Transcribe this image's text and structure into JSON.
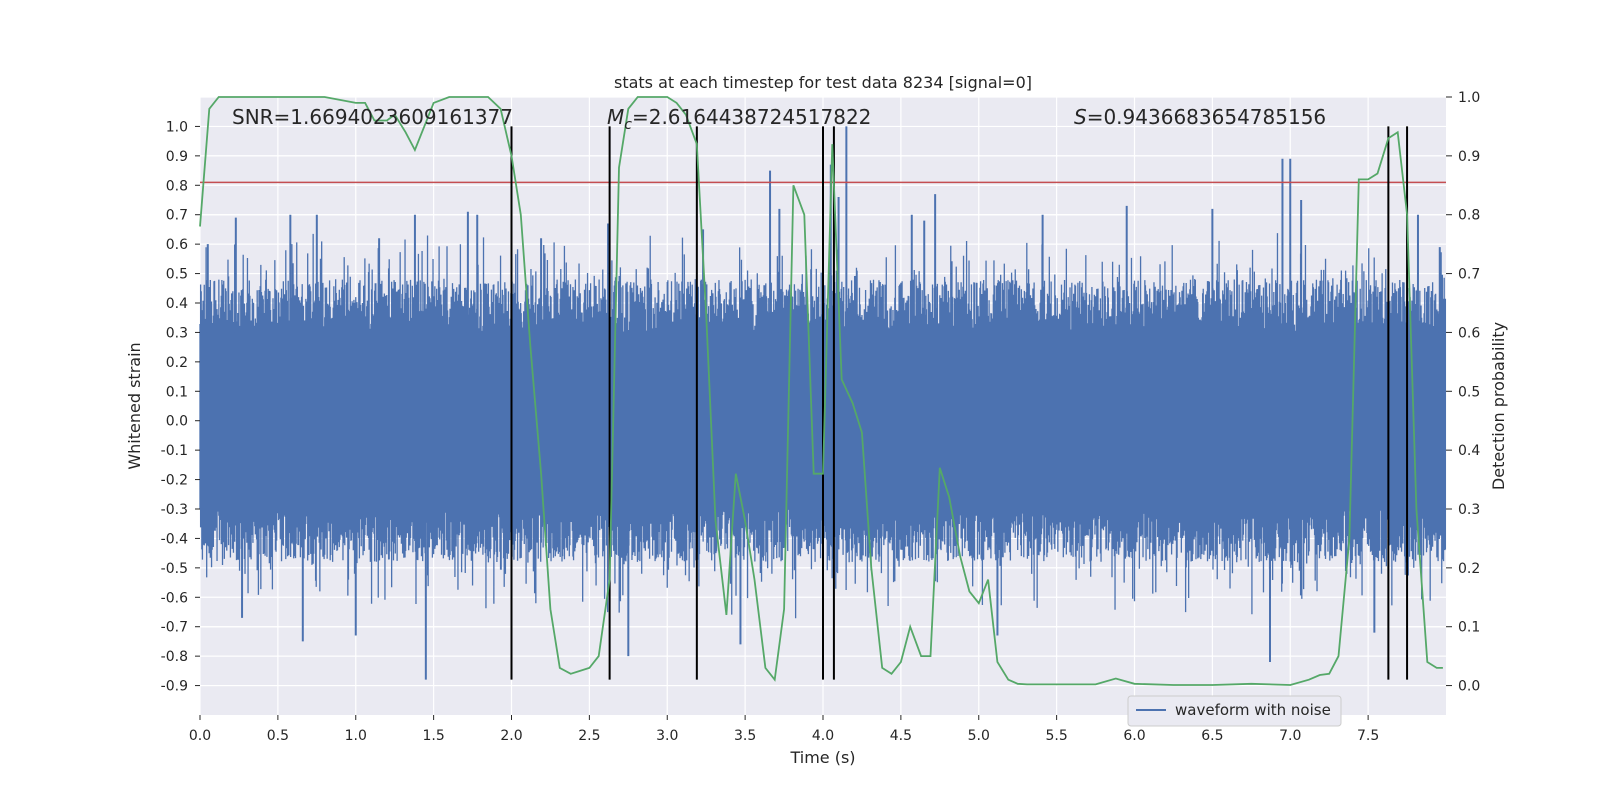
{
  "chart_data": {
    "type": "line",
    "title": "stats at each timestep for test data 8234 [signal=0]",
    "xlabel": "Time (s)",
    "ylabel_left": "Whitened strain",
    "ylabel_right": "Detection probability",
    "xlim": [
      0,
      8
    ],
    "ylim_left": [
      -1.0,
      1.1
    ],
    "ylim_right": [
      -0.05,
      1.0
    ],
    "grid": true,
    "legend_position": "lower-right",
    "x_ticks": [
      "0.0",
      "0.5",
      "1.0",
      "1.5",
      "2.0",
      "2.5",
      "3.0",
      "3.5",
      "4.0",
      "4.5",
      "5.0",
      "5.5",
      "6.0",
      "6.5",
      "7.0",
      "7.5"
    ],
    "y_ticks_left": [
      "1.0",
      "0.9",
      "0.8",
      "0.7",
      "0.6",
      "0.5",
      "0.4",
      "0.3",
      "0.2",
      "0.1",
      "0.0",
      "-0.1",
      "-0.2",
      "-0.3",
      "-0.4",
      "-0.5",
      "-0.6",
      "-0.7",
      "-0.8",
      "-0.9"
    ],
    "y_ticks_right": [
      "1.0",
      "0.9",
      "0.8",
      "0.7",
      "0.6",
      "0.5",
      "0.4",
      "0.3",
      "0.2",
      "0.1",
      "0.0"
    ],
    "annotations": {
      "snr": "SNR=1.6694023609161377",
      "mc_symbol": "M",
      "mc_sub": "c",
      "mc_value": "=2.6164438724517822",
      "s_symbol": "S",
      "s_value": "=0.9436683654785156"
    },
    "threshold_line": {
      "y": 0.81,
      "color": "#c44e52"
    },
    "event_lines_x": [
      2.0,
      2.63,
      3.19,
      4.0,
      4.07,
      7.63,
      7.75
    ],
    "event_lines_range": [
      -0.88,
      1.0
    ],
    "waveform": {
      "name": "waveform with noise",
      "color": "#4c72b0",
      "samples_per_second": 256,
      "core_amplitude": 0.3,
      "peak_spikes": [
        {
          "x": 0.05,
          "y": 0.6
        },
        {
          "x": 0.23,
          "y": 0.69
        },
        {
          "x": 0.27,
          "y": -0.67
        },
        {
          "x": 0.58,
          "y": 0.7
        },
        {
          "x": 0.66,
          "y": -0.75
        },
        {
          "x": 0.75,
          "y": 0.7
        },
        {
          "x": 1.0,
          "y": -0.73
        },
        {
          "x": 1.15,
          "y": 0.62
        },
        {
          "x": 1.38,
          "y": 0.7
        },
        {
          "x": 1.45,
          "y": -0.88
        },
        {
          "x": 1.72,
          "y": 0.71
        },
        {
          "x": 1.78,
          "y": 0.7
        },
        {
          "x": 2.19,
          "y": 0.62
        },
        {
          "x": 2.62,
          "y": 0.67
        },
        {
          "x": 2.75,
          "y": -0.8
        },
        {
          "x": 3.23,
          "y": 0.65
        },
        {
          "x": 3.47,
          "y": -0.76
        },
        {
          "x": 3.66,
          "y": 0.85
        },
        {
          "x": 3.72,
          "y": 0.72
        },
        {
          "x": 4.05,
          "y": 0.87
        },
        {
          "x": 4.1,
          "y": 0.76
        },
        {
          "x": 4.15,
          "y": 1.0
        },
        {
          "x": 4.57,
          "y": 0.7
        },
        {
          "x": 4.65,
          "y": 0.68
        },
        {
          "x": 4.72,
          "y": 0.77
        },
        {
          "x": 5.12,
          "y": -0.73
        },
        {
          "x": 5.41,
          "y": 0.7
        },
        {
          "x": 5.95,
          "y": 0.73
        },
        {
          "x": 6.5,
          "y": 0.72
        },
        {
          "x": 6.87,
          "y": -0.82
        },
        {
          "x": 6.95,
          "y": 0.89
        },
        {
          "x": 7.0,
          "y": 0.89
        },
        {
          "x": 7.07,
          "y": 0.75
        },
        {
          "x": 7.54,
          "y": -0.72
        },
        {
          "x": 7.82,
          "y": 0.7
        },
        {
          "x": 7.96,
          "y": 0.59
        }
      ]
    },
    "detection_probability": {
      "color": "#55a868",
      "x": [
        0.0,
        0.06,
        0.12,
        0.25,
        0.4,
        0.6,
        0.8,
        1.0,
        1.06,
        1.12,
        1.2,
        1.25,
        1.32,
        1.38,
        1.44,
        1.5,
        1.6,
        1.75,
        1.85,
        1.93,
        2.0,
        2.06,
        2.12,
        2.19,
        2.25,
        2.31,
        2.38,
        2.44,
        2.5,
        2.56,
        2.63,
        2.69,
        2.75,
        2.81,
        2.88,
        3.0,
        3.06,
        3.12,
        3.19,
        3.25,
        3.31,
        3.38,
        3.44,
        3.5,
        3.56,
        3.63,
        3.69,
        3.75,
        3.81,
        3.88,
        3.94,
        4.0,
        4.06,
        4.12,
        4.19,
        4.25,
        4.31,
        4.38,
        4.44,
        4.5,
        4.56,
        4.63,
        4.69,
        4.75,
        4.81,
        4.88,
        4.94,
        5.0,
        5.06,
        5.12,
        5.19,
        5.25,
        5.31,
        5.38,
        5.5,
        5.75,
        5.88,
        6.0,
        6.25,
        6.5,
        6.75,
        7.0,
        7.12,
        7.19,
        7.25,
        7.31,
        7.38,
        7.44,
        7.5,
        7.56,
        7.63,
        7.69,
        7.75,
        7.81,
        7.88,
        7.94,
        7.98
      ],
      "y": [
        0.78,
        0.98,
        1.0,
        1.0,
        1.0,
        1.0,
        1.0,
        0.99,
        0.99,
        0.96,
        0.96,
        0.97,
        0.94,
        0.91,
        0.95,
        0.99,
        1.0,
        1.0,
        1.0,
        0.98,
        0.9,
        0.8,
        0.58,
        0.36,
        0.13,
        0.03,
        0.02,
        0.025,
        0.03,
        0.05,
        0.18,
        0.88,
        0.98,
        1.0,
        1.0,
        1.0,
        0.99,
        0.97,
        0.92,
        0.63,
        0.28,
        0.12,
        0.36,
        0.28,
        0.18,
        0.03,
        0.01,
        0.13,
        0.85,
        0.8,
        0.36,
        0.36,
        0.92,
        0.52,
        0.48,
        0.43,
        0.2,
        0.03,
        0.02,
        0.04,
        0.1,
        0.05,
        0.05,
        0.37,
        0.32,
        0.22,
        0.16,
        0.14,
        0.18,
        0.04,
        0.01,
        0.003,
        0.002,
        0.002,
        0.002,
        0.002,
        0.012,
        0.003,
        0.001,
        0.001,
        0.003,
        0.001,
        0.01,
        0.018,
        0.02,
        0.05,
        0.25,
        0.86,
        0.86,
        0.87,
        0.93,
        0.94,
        0.8,
        0.3,
        0.04,
        0.03,
        0.03
      ]
    }
  }
}
